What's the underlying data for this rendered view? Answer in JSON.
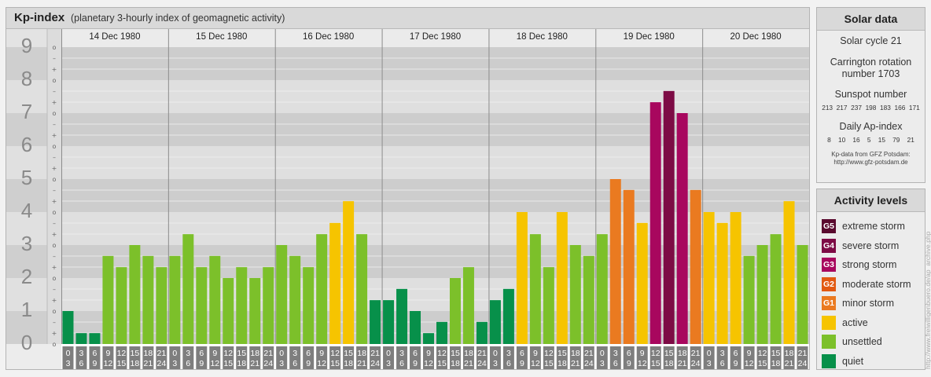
{
  "header": {
    "title": "Kp-index",
    "subtitle": "(planetary 3-hourly index of geomagnetic activity)"
  },
  "chart_data": {
    "type": "bar",
    "title": "Kp-index",
    "subtitle": "(planetary 3-hourly index of geomagnetic activity)",
    "ylim": [
      0,
      9
    ],
    "y_ticks": [
      "0",
      "1",
      "2",
      "3",
      "4",
      "5",
      "6",
      "7",
      "8",
      "9"
    ],
    "sub_ticks": [
      "o",
      "+",
      "–"
    ],
    "days": [
      "14 Dec 1980",
      "15 Dec 1980",
      "16 Dec 1980",
      "17 Dec 1980",
      "18 Dec 1980",
      "19 Dec 1980",
      "20 Dec 1980"
    ],
    "interval_labels": [
      [
        "0",
        "3"
      ],
      [
        "3",
        "6"
      ],
      [
        "6",
        "9"
      ],
      [
        "9",
        "12"
      ],
      [
        "12",
        "15"
      ],
      [
        "15",
        "18"
      ],
      [
        "18",
        "21"
      ],
      [
        "21",
        "24"
      ]
    ],
    "values": [
      [
        1.0,
        0.33,
        0.33,
        2.67,
        2.33,
        3.0,
        2.67,
        2.33
      ],
      [
        2.67,
        3.33,
        2.33,
        2.67,
        2.0,
        2.33,
        2.0,
        2.33
      ],
      [
        3.0,
        2.67,
        2.33,
        3.33,
        3.67,
        4.33,
        3.33,
        1.33
      ],
      [
        1.33,
        1.67,
        1.0,
        0.33,
        0.67,
        2.0,
        2.33,
        0.67
      ],
      [
        1.33,
        1.67,
        4.0,
        3.33,
        2.33,
        4.0,
        3.0,
        2.67
      ],
      [
        3.33,
        5.0,
        4.67,
        3.67,
        7.33,
        7.67,
        7.0,
        4.67
      ],
      [
        4.0,
        3.67,
        4.0,
        2.67,
        3.0,
        3.33,
        4.33,
        3.0
      ]
    ],
    "grid": true,
    "legend": "right"
  },
  "solar": {
    "title": "Solar data",
    "cycle": "Solar cycle 21",
    "carrington_line1": "Carrington rotation",
    "carrington_line2": "number 1703",
    "sunspot_label": "Sunspot number",
    "sunspot_values": "213  217  237  198  183  166  171",
    "ap_label": "Daily Ap-index",
    "ap_values": "8    10    16    5    15    79    21",
    "source_line1": "Kp-data from GFZ Potsdam:",
    "source_line2": "http://www.gfz-potsdam.de"
  },
  "activity": {
    "title": "Activity levels",
    "levels": [
      {
        "code": "G5",
        "label": "extreme storm",
        "color": "#5a0a2e"
      },
      {
        "code": "G4",
        "label": "severe storm",
        "color": "#7d0b45"
      },
      {
        "code": "G3",
        "label": "strong storm",
        "color": "#a8075e"
      },
      {
        "code": "G2",
        "label": "moderate storm",
        "color": "#e25a12"
      },
      {
        "code": "G1",
        "label": "minor storm",
        "color": "#ea7a20"
      },
      {
        "code": "",
        "label": "active",
        "color": "#f6c400"
      },
      {
        "code": "",
        "label": "unsettled",
        "color": "#7cc02a"
      },
      {
        "code": "",
        "label": "quiet",
        "color": "#07904a"
      }
    ]
  },
  "credit": "http://www.freiwilligenbuero.de/ap_archive.php"
}
